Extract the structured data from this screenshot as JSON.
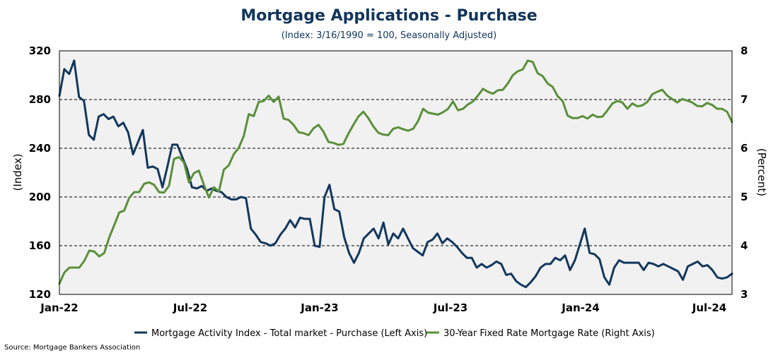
{
  "chart_data": {
    "type": "line",
    "title": "Mortgage Applications - Purchase",
    "subtitle": "(Index: 3/16/1990 = 100, Seasonally Adjusted)",
    "ylabel_left": "(Index)",
    "ylabel_right": "(Percent)",
    "y_left_ticks": [
      "120",
      "160",
      "200",
      "240",
      "280",
      "320"
    ],
    "y_right_ticks": [
      "3",
      "4",
      "5",
      "6",
      "7",
      "8"
    ],
    "x_ticks": [
      "Jan-22",
      "Jul-22",
      "Jan-23",
      "Jul-23",
      "Jan-24",
      "Jul-24"
    ],
    "ylim_left": [
      120,
      320
    ],
    "ylim_right": [
      3,
      8
    ],
    "grid": "horizontal dashed",
    "legend_position": "bottom",
    "source": "Source: Mortgage Bankers Association",
    "series": [
      {
        "name": "Mortgage Activity Index - Total market - Purchase (Left Axis)",
        "axis": "left",
        "color": "#12375e",
        "values": [
          283,
          305,
          301,
          312,
          282,
          279,
          251,
          247,
          266,
          268,
          264,
          266,
          258,
          261,
          253,
          235,
          245,
          255,
          224,
          225,
          223,
          208,
          225,
          243,
          243,
          233,
          223,
          208,
          207,
          209,
          205,
          207,
          205,
          204,
          200,
          198,
          198,
          200,
          199,
          174,
          169,
          163,
          162,
          160,
          162,
          169,
          174,
          181,
          175,
          183,
          182,
          182,
          160,
          159,
          200,
          210,
          190,
          188,
          167,
          154,
          146,
          154,
          166,
          170,
          174,
          166,
          179,
          161,
          170,
          166,
          174,
          166,
          158,
          155,
          152,
          163,
          165,
          170,
          162,
          166,
          163,
          159,
          154,
          150,
          150,
          142,
          145,
          142,
          144,
          147,
          145,
          136,
          137,
          131,
          128,
          126,
          130,
          135,
          142,
          145,
          145,
          150,
          148,
          152,
          140,
          148,
          161,
          174,
          154,
          153,
          149,
          134,
          128,
          142,
          148,
          146,
          146,
          146,
          146,
          140,
          146,
          145,
          143,
          145,
          143,
          141,
          139,
          132,
          143,
          145,
          147,
          143,
          144,
          140,
          134,
          133,
          134,
          137
        ]
      },
      {
        "name": "30-Year Fixed Rate Mortgage Rate (Right Axis)",
        "axis": "right",
        "color": "#5a8f3a",
        "values": [
          3.22,
          3.45,
          3.55,
          3.55,
          3.55,
          3.69,
          3.9,
          3.88,
          3.78,
          3.85,
          4.17,
          4.42,
          4.68,
          4.72,
          4.98,
          5.1,
          5.1,
          5.27,
          5.3,
          5.25,
          5.1,
          5.09,
          5.23,
          5.78,
          5.82,
          5.71,
          5.3,
          5.49,
          5.54,
          5.25,
          4.99,
          5.2,
          5.11,
          5.56,
          5.65,
          5.88,
          6.01,
          6.25,
          6.7,
          6.66,
          6.95,
          6.97,
          7.08,
          6.95,
          7.06,
          6.61,
          6.58,
          6.48,
          6.33,
          6.31,
          6.27,
          6.41,
          6.48,
          6.34,
          6.13,
          6.11,
          6.07,
          6.09,
          6.3,
          6.48,
          6.65,
          6.75,
          6.62,
          6.45,
          6.32,
          6.28,
          6.27,
          6.4,
          6.43,
          6.39,
          6.36,
          6.4,
          6.56,
          6.81,
          6.73,
          6.71,
          6.69,
          6.74,
          6.81,
          6.96,
          6.78,
          6.81,
          6.9,
          6.96,
          7.08,
          7.22,
          7.16,
          7.12,
          7.19,
          7.2,
          7.33,
          7.5,
          7.58,
          7.62,
          7.8,
          7.77,
          7.54,
          7.48,
          7.33,
          7.26,
          7.07,
          6.97,
          6.67,
          6.62,
          6.62,
          6.66,
          6.61,
          6.69,
          6.64,
          6.65,
          6.78,
          6.92,
          6.97,
          6.94,
          6.81,
          6.92,
          6.86,
          6.88,
          6.95,
          7.11,
          7.16,
          7.2,
          7.08,
          7.01,
          6.94,
          7.01,
          6.98,
          6.94,
          6.87,
          6.86,
          6.93,
          6.89,
          6.81,
          6.81,
          6.75,
          6.54
        ]
      }
    ]
  }
}
